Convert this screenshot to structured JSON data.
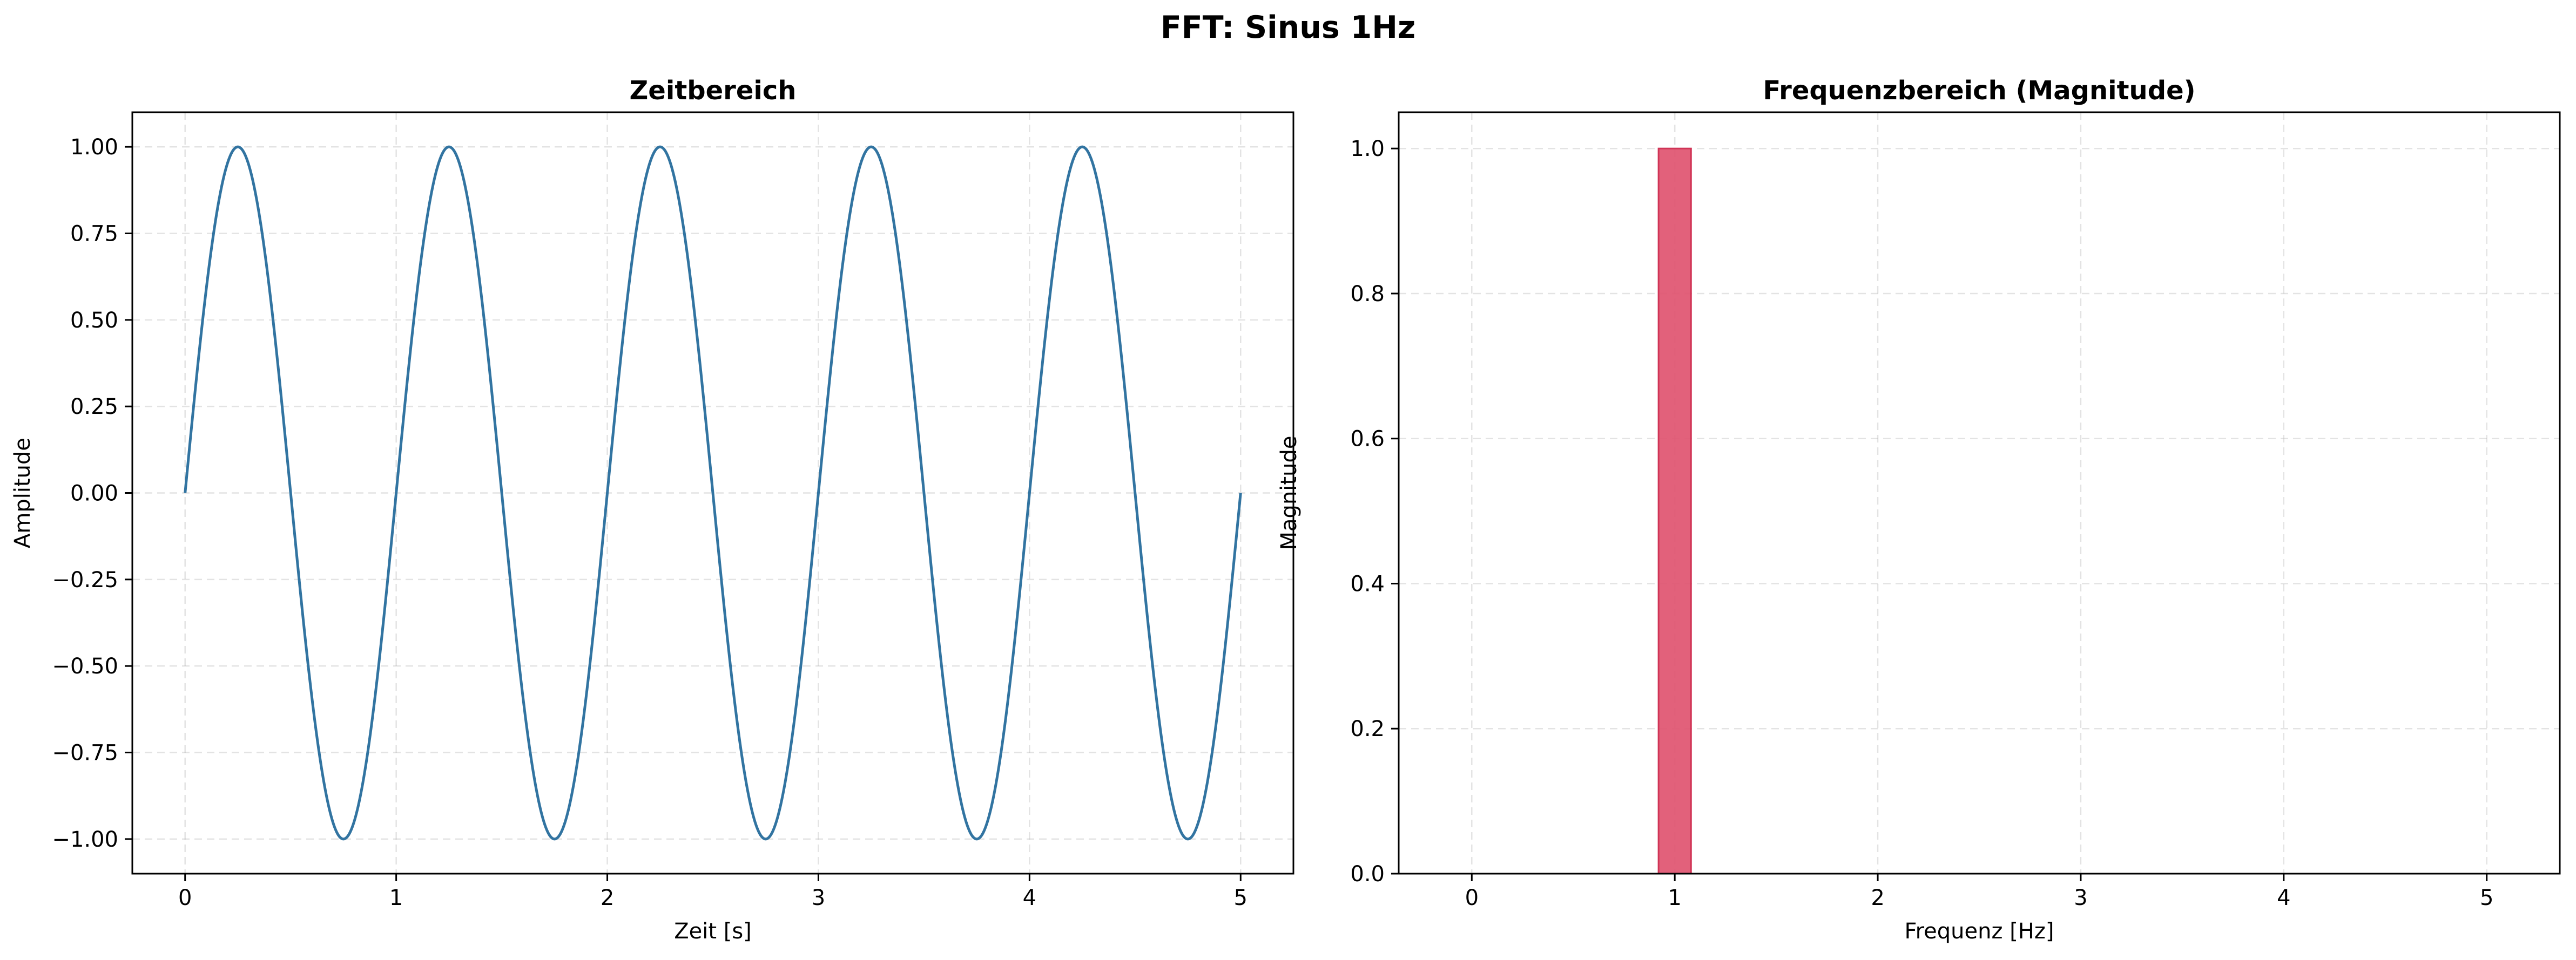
{
  "figure": {
    "title": "FFT: Sinus 1Hz"
  },
  "chart_data": [
    {
      "type": "line",
      "title": "Zeitbereich",
      "xlabel": "Zeit [s]",
      "ylabel": "Amplitude",
      "xlim": [
        -0.25,
        5.25
      ],
      "ylim": [
        -1.1,
        1.1
      ],
      "xticks": [
        0,
        1,
        2,
        3,
        4,
        5
      ],
      "xtick_labels": [
        "0",
        "1",
        "2",
        "3",
        "4",
        "5"
      ],
      "yticks": [
        -1.0,
        -0.75,
        -0.5,
        -0.25,
        0.0,
        0.25,
        0.5,
        0.75,
        1.0
      ],
      "ytick_labels": [
        "−1.00",
        "−0.75",
        "−0.50",
        "−0.25",
        "0.00",
        "0.25",
        "0.50",
        "0.75",
        "1.00"
      ],
      "grid": true,
      "series": [
        {
          "function": "sin",
          "frequency_hz": 1,
          "amplitude": 1,
          "x_start": 0,
          "x_end": 5,
          "color": "#3274a1"
        }
      ]
    },
    {
      "type": "bar",
      "title": "Frequenzbereich (Magnitude)",
      "xlabel": "Frequenz [Hz]",
      "ylabel": "Magnitude",
      "xlim": [
        -0.36,
        5.36
      ],
      "ylim": [
        0,
        1.05
      ],
      "xticks": [
        0,
        1,
        2,
        3,
        4,
        5
      ],
      "xtick_labels": [
        "0",
        "1",
        "2",
        "3",
        "4",
        "5"
      ],
      "yticks": [
        0.0,
        0.2,
        0.4,
        0.6,
        0.8,
        1.0
      ],
      "ytick_labels": [
        "0.0",
        "0.2",
        "0.4",
        "0.6",
        "0.8",
        "1.0"
      ],
      "grid": true,
      "bar_width": 0.16,
      "color": "#e05470",
      "edge_color": "#d03456",
      "x": [
        0,
        0.2,
        0.4,
        0.6,
        0.8,
        1.0,
        1.2,
        1.4,
        1.6,
        1.8,
        2.0,
        2.2,
        2.4,
        2.6,
        2.8,
        3.0,
        3.2,
        3.4,
        3.6,
        3.8,
        4.0,
        4.2,
        4.4,
        4.6,
        4.8,
        5.0
      ],
      "values": [
        0,
        0,
        0,
        0,
        0,
        1.0,
        0,
        0,
        0,
        0,
        0,
        0,
        0,
        0,
        0,
        0,
        0,
        0,
        0,
        0,
        0,
        0,
        0,
        0,
        0,
        0
      ]
    }
  ]
}
